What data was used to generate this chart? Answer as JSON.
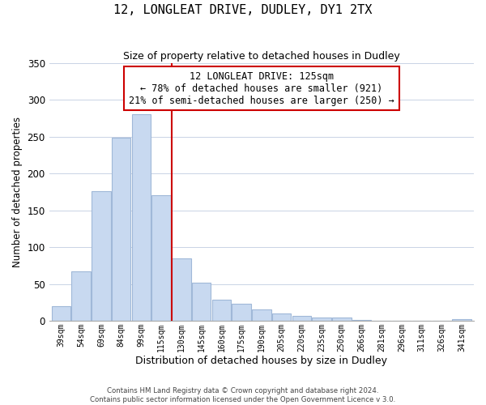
{
  "title": "12, LONGLEAT DRIVE, DUDLEY, DY1 2TX",
  "subtitle": "Size of property relative to detached houses in Dudley",
  "xlabel": "Distribution of detached houses by size in Dudley",
  "ylabel": "Number of detached properties",
  "bar_labels": [
    "39sqm",
    "54sqm",
    "69sqm",
    "84sqm",
    "99sqm",
    "115sqm",
    "130sqm",
    "145sqm",
    "160sqm",
    "175sqm",
    "190sqm",
    "205sqm",
    "220sqm",
    "235sqm",
    "250sqm",
    "266sqm",
    "281sqm",
    "296sqm",
    "311sqm",
    "326sqm",
    "341sqm"
  ],
  "bar_values": [
    20,
    67,
    176,
    249,
    281,
    171,
    85,
    52,
    29,
    23,
    15,
    10,
    6,
    4,
    4,
    1,
    0,
    0,
    0,
    0,
    2
  ],
  "bar_color": "#c8d9f0",
  "bar_edge_color": "#a0b8d8",
  "vline_x": 5.5,
  "vline_color": "#cc0000",
  "annotation_title": "12 LONGLEAT DRIVE: 125sqm",
  "annotation_line1": "← 78% of detached houses are smaller (921)",
  "annotation_line2": "21% of semi-detached houses are larger (250) →",
  "annotation_box_color": "#ffffff",
  "annotation_box_edge": "#cc0000",
  "footer1": "Contains HM Land Registry data © Crown copyright and database right 2024.",
  "footer2": "Contains public sector information licensed under the Open Government Licence v 3.0.",
  "ylim": [
    0,
    350
  ],
  "yticks": [
    0,
    50,
    100,
    150,
    200,
    250,
    300,
    350
  ],
  "figsize": [
    6.0,
    5.0
  ],
  "dpi": 100
}
